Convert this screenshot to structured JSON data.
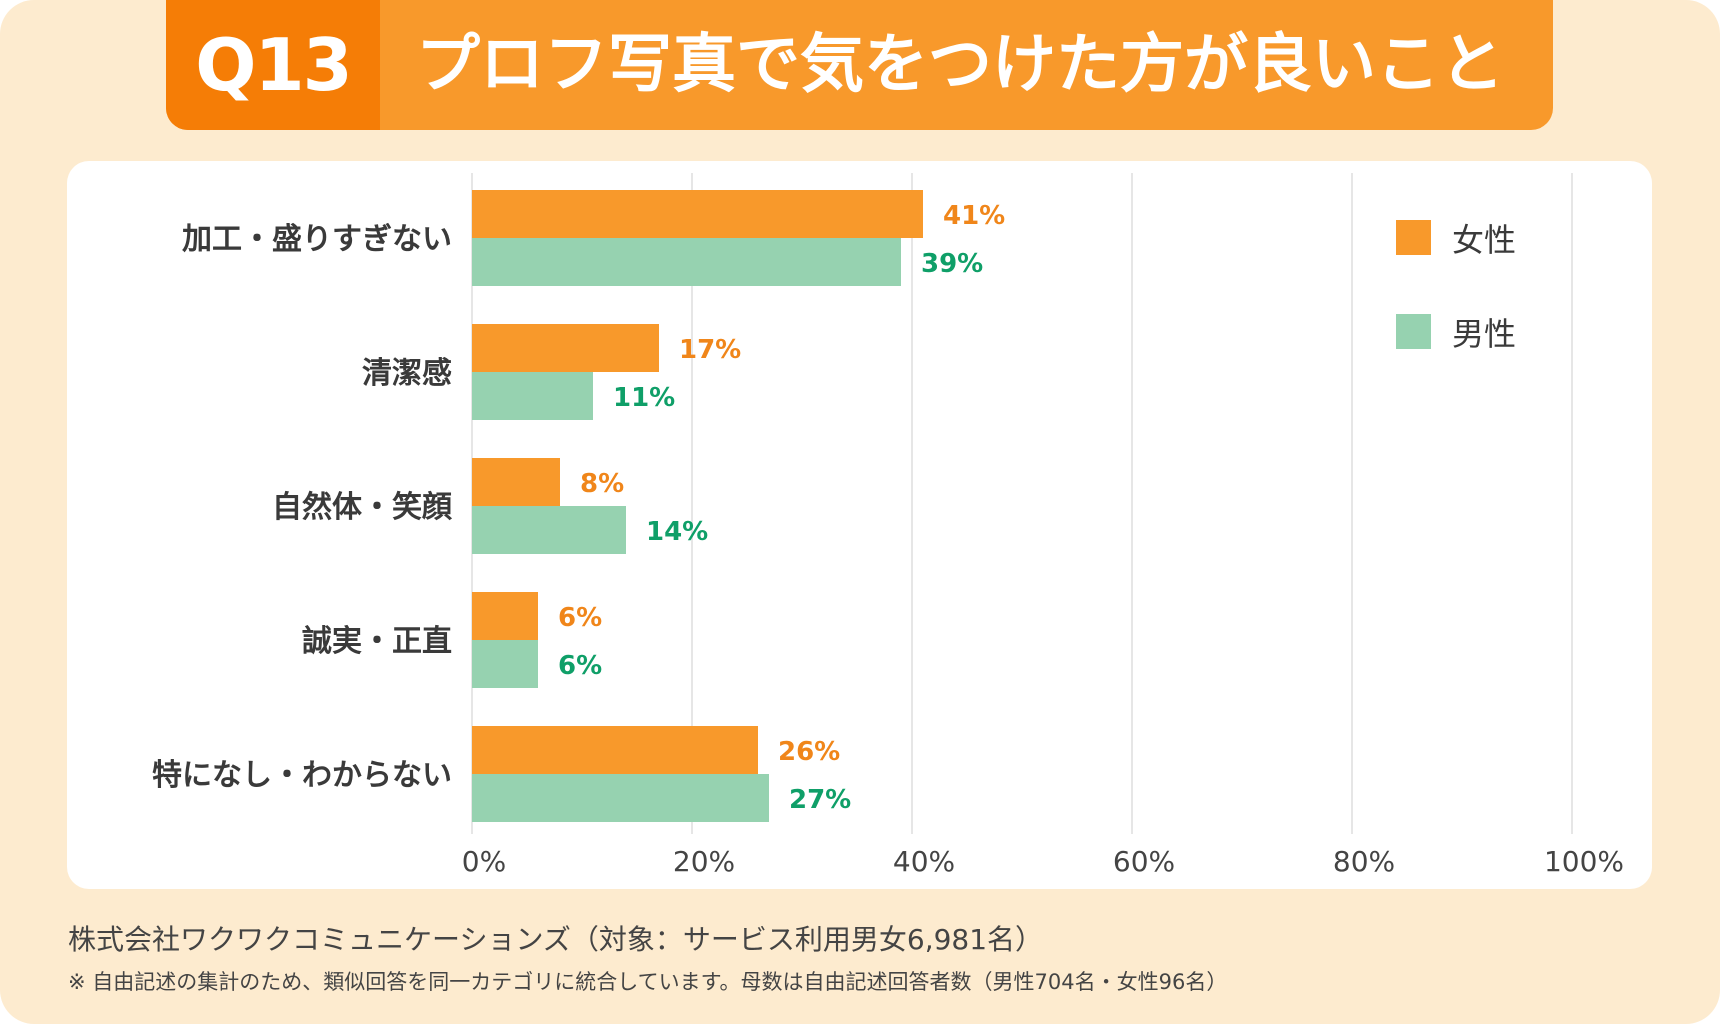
{
  "header": {
    "question_number": "Q13",
    "title": "プロフ写真で気をつけた方が良いこと"
  },
  "colors": {
    "female": "#f8992b",
    "male": "#96d2b0",
    "female_label": "#f0861a",
    "male_label": "#0f9f68",
    "background": "#fdebcf"
  },
  "chart_data": {
    "type": "bar",
    "orientation": "horizontal",
    "categories": [
      "加工・盛りすぎない",
      "清潔感",
      "自然体・笑顔",
      "誠実・正直",
      "特になし・わからない"
    ],
    "series": [
      {
        "name": "女性",
        "values": [
          41,
          17,
          8,
          6,
          26
        ],
        "labels": [
          "41%",
          "17%",
          "8%",
          "6%",
          "26%"
        ]
      },
      {
        "name": "男性",
        "values": [
          39,
          11,
          14,
          6,
          27
        ],
        "labels": [
          "39%",
          "11%",
          "14%",
          "6%",
          "27%"
        ]
      }
    ],
    "xlim": [
      0,
      100
    ],
    "xticks": [
      "0%",
      "20%",
      "40%",
      "60%",
      "80%",
      "100%"
    ],
    "grid": true,
    "legend_position": "top-right"
  },
  "footer": {
    "source": "株式会社ワクワクコミュニケーションズ（対象：サービス利用男女6,981名）",
    "note": "※ 自由記述の集計のため、類似回答を同一カテゴリに統合しています。母数は自由記述回答者数（男性704名・女性96名）"
  }
}
